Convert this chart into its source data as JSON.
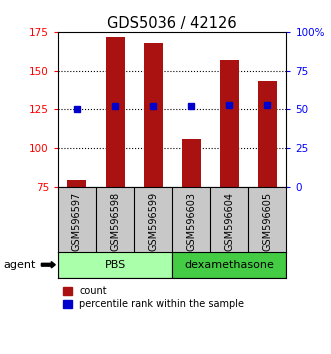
{
  "title": "GDS5036 / 42126",
  "samples": [
    "GSM596597",
    "GSM596598",
    "GSM596599",
    "GSM596603",
    "GSM596604",
    "GSM596605"
  ],
  "counts": [
    79,
    172,
    168,
    106,
    157,
    143
  ],
  "percentile_ranks": [
    50,
    52,
    52,
    52,
    53,
    53
  ],
  "ylim_left": [
    75,
    175
  ],
  "ylim_right": [
    0,
    100
  ],
  "yticks_left": [
    75,
    100,
    125,
    150,
    175
  ],
  "yticks_right": [
    0,
    25,
    50,
    75,
    100
  ],
  "ytick_labels_right": [
    "0",
    "25",
    "50",
    "75",
    "100%"
  ],
  "bar_color": "#AA1111",
  "dot_color": "#0000CC",
  "bar_width": 0.5,
  "bg_color": "#C8C8C8",
  "pbs_color": "#AAFFAA",
  "dex_color": "#44CC44",
  "agent_label": "agent",
  "legend_count_label": "count",
  "legend_pct_label": "percentile rank within the sample",
  "grid_yticks": [
    100,
    125,
    150
  ]
}
